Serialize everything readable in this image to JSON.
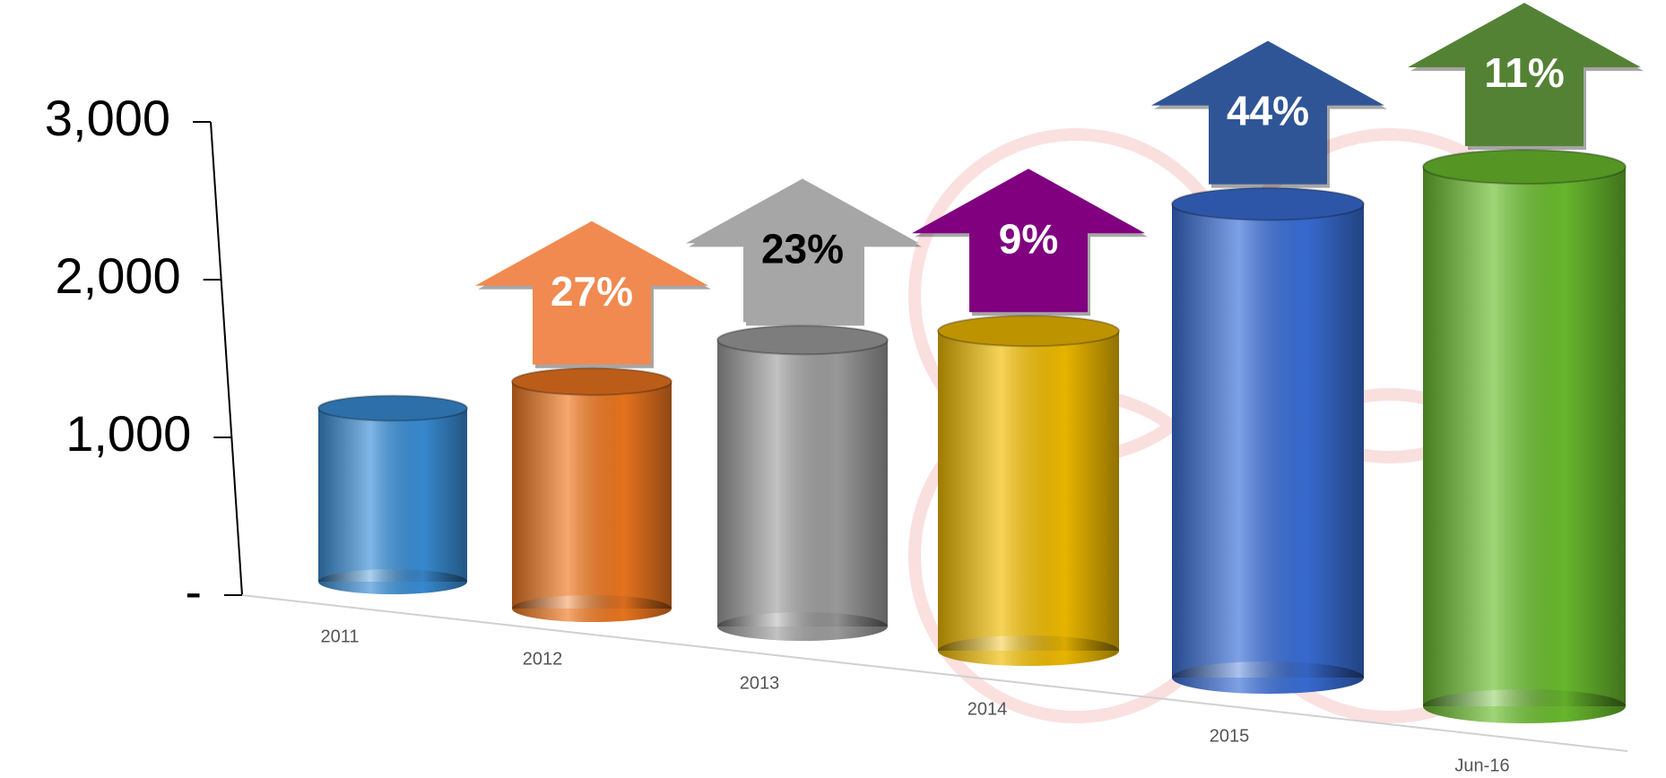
{
  "chart_data": {
    "type": "bar",
    "categories": [
      "2011",
      "2012",
      "2013",
      "2014",
      "2015",
      "Jun-16"
    ],
    "values": [
      1100,
      1400,
      1720,
      1870,
      2700,
      3000
    ],
    "colors": [
      "#3a8fd8",
      "#f07820",
      "#a0a0a0",
      "#f2bd00",
      "#3a6fd8",
      "#6cbf2f"
    ],
    "growth_labels": [
      null,
      "27%",
      "23%",
      "9%",
      "44%",
      "11%"
    ],
    "growth_arrow_colors": [
      null,
      "#f08a50",
      "#a6a6a6",
      "#800080",
      "#2f5597",
      "#548235"
    ],
    "growth_text_colors": [
      null,
      "#ffffff",
      "#000000",
      "#ffffff",
      "#ffffff",
      "#ffffff"
    ],
    "ylim": [
      0,
      3000
    ],
    "yticks": [
      {
        "value": 0,
        "label": "-"
      },
      {
        "value": 1000,
        "label": "1,000"
      },
      {
        "value": 2000,
        "label": "2,000"
      },
      {
        "value": 3000,
        "label": "3,000"
      }
    ]
  }
}
